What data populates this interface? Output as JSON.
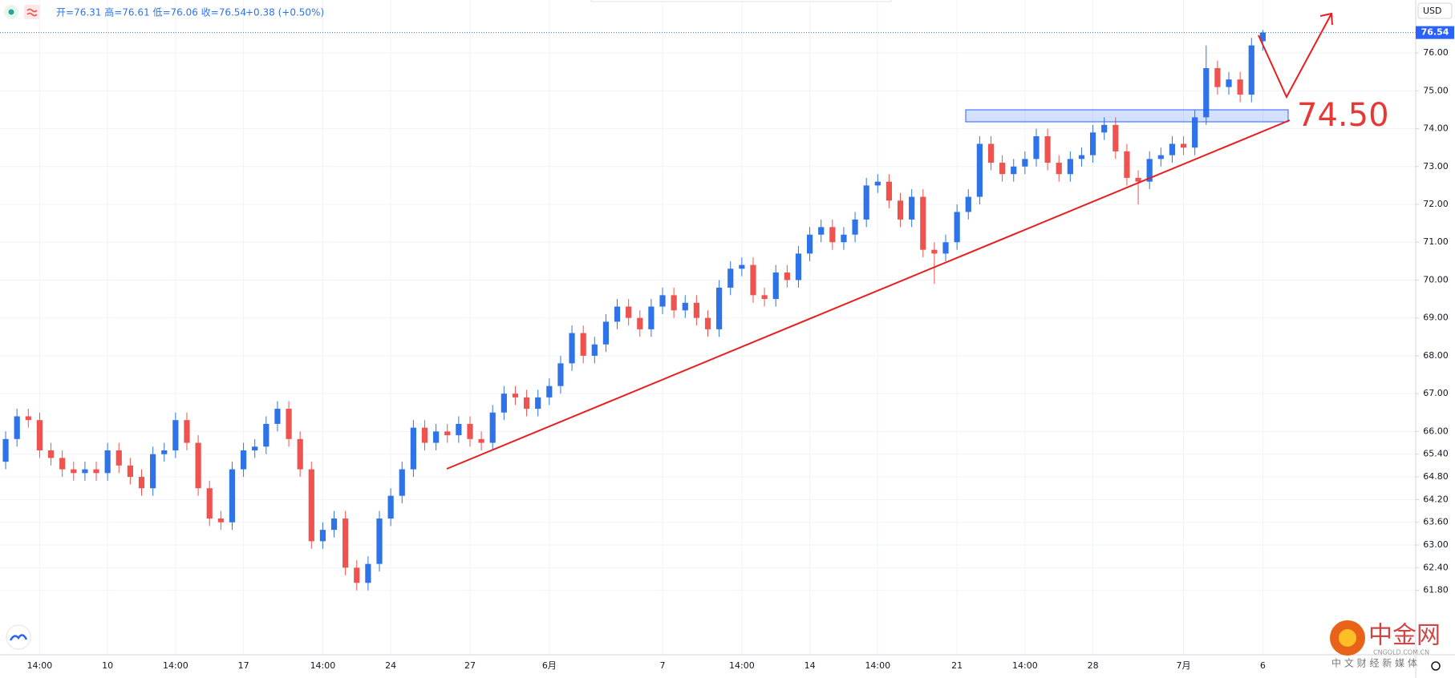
{
  "chart_data": {
    "type": "candlestick",
    "header": {
      "ohlc": "开=76.31 高=76.61 低=76.06 收=76.54",
      "change": "+0.38 (+0.50%)"
    },
    "currency": "USD",
    "annotation": "74.50",
    "watermark": {
      "brand": "中金网",
      "site": "CNGOLD.COM.CN",
      "slogan": "中 文 财 经 新 媒 体"
    },
    "up_color": "#2f73e8",
    "down_color": "#ef5350",
    "grid": true,
    "ylim": [
      60.1,
      77.4
    ],
    "yticks": [
      {
        "value": 61.8,
        "label": "61.80"
      },
      {
        "value": 62.4,
        "label": "62.40"
      },
      {
        "value": 63,
        "label": "63.00"
      },
      {
        "value": 63.6,
        "label": "63.60"
      },
      {
        "value": 64.2,
        "label": "64.20"
      },
      {
        "value": 64.8,
        "label": "64.80"
      },
      {
        "value": 65.4,
        "label": "65.40"
      },
      {
        "value": 66,
        "label": "66.00"
      },
      {
        "value": 67,
        "label": "67.00"
      },
      {
        "value": 68,
        "label": "68.00"
      },
      {
        "value": 69,
        "label": "69.00"
      },
      {
        "value": 70,
        "label": "70.00"
      },
      {
        "value": 71,
        "label": "71.00"
      },
      {
        "value": 72,
        "label": "72.00"
      },
      {
        "value": 73,
        "label": "73.00"
      },
      {
        "value": 74,
        "label": "74.00"
      },
      {
        "value": 75,
        "label": "75.00"
      },
      {
        "value": 76,
        "label": "76.00"
      }
    ],
    "categories": [
      null,
      null,
      null,
      "14:00",
      null,
      null,
      null,
      null,
      null,
      "10",
      null,
      null,
      null,
      null,
      null,
      "14:00",
      null,
      null,
      null,
      null,
      null,
      "17",
      null,
      null,
      null,
      null,
      null,
      null,
      "14:00",
      null,
      null,
      null,
      null,
      null,
      "24",
      null,
      null,
      null,
      null,
      null,
      null,
      "27",
      null,
      null,
      null,
      null,
      null,
      null,
      "6月",
      null,
      null,
      null,
      null,
      null,
      null,
      null,
      null,
      null,
      "7",
      null,
      null,
      null,
      null,
      null,
      null,
      "14:00",
      null,
      null,
      null,
      null,
      null,
      "14",
      null,
      null,
      null,
      null,
      null,
      "14:00",
      null,
      null,
      null,
      null,
      null,
      null,
      "21",
      null,
      null,
      null,
      null,
      null,
      "14:00",
      null,
      null,
      null,
      null,
      null,
      "28",
      null,
      null,
      null,
      null,
      null,
      null,
      null,
      "7月",
      null,
      null,
      null,
      null,
      null,
      null,
      "6"
    ],
    "candles": [
      [
        65.2,
        66.0,
        65.0,
        65.8
      ],
      [
        65.8,
        66.6,
        65.6,
        66.4
      ],
      [
        66.4,
        66.6,
        66.1,
        66.3
      ],
      [
        66.3,
        66.5,
        65.3,
        65.5
      ],
      [
        65.5,
        65.7,
        65.1,
        65.3
      ],
      [
        65.3,
        65.5,
        64.8,
        65.0
      ],
      [
        65.0,
        65.2,
        64.7,
        64.9
      ],
      [
        64.9,
        65.2,
        64.7,
        65.0
      ],
      [
        65.0,
        65.2,
        64.7,
        64.9
      ],
      [
        64.9,
        65.7,
        64.7,
        65.5
      ],
      [
        65.5,
        65.7,
        64.9,
        65.1
      ],
      [
        65.1,
        65.3,
        64.6,
        64.8
      ],
      [
        64.8,
        65.0,
        64.3,
        64.5
      ],
      [
        64.5,
        65.6,
        64.3,
        65.4
      ],
      [
        65.4,
        65.7,
        65.2,
        65.5
      ],
      [
        65.5,
        66.5,
        65.3,
        66.3
      ],
      [
        66.3,
        66.5,
        65.5,
        65.7
      ],
      [
        65.7,
        65.9,
        64.3,
        64.5
      ],
      [
        64.5,
        64.7,
        63.5,
        63.7
      ],
      [
        63.7,
        63.9,
        63.4,
        63.6
      ],
      [
        63.6,
        65.2,
        63.4,
        65.0
      ],
      [
        65.0,
        65.7,
        64.8,
        65.5
      ],
      [
        65.5,
        65.8,
        65.3,
        65.6
      ],
      [
        65.6,
        66.4,
        65.4,
        66.2
      ],
      [
        66.2,
        66.8,
        66.0,
        66.6
      ],
      [
        66.6,
        66.8,
        65.6,
        65.8
      ],
      [
        65.8,
        66.0,
        64.8,
        65.0
      ],
      [
        65.0,
        65.2,
        62.9,
        63.1
      ],
      [
        63.1,
        63.6,
        62.9,
        63.4
      ],
      [
        63.4,
        63.9,
        63.2,
        63.7
      ],
      [
        63.7,
        63.9,
        62.2,
        62.4
      ],
      [
        62.4,
        62.6,
        61.8,
        62.0
      ],
      [
        62.0,
        62.7,
        61.8,
        62.5
      ],
      [
        62.5,
        63.9,
        62.3,
        63.7
      ],
      [
        63.7,
        64.5,
        63.5,
        64.3
      ],
      [
        64.3,
        65.2,
        64.1,
        65.0
      ],
      [
        65.0,
        66.3,
        64.8,
        66.1
      ],
      [
        66.1,
        66.3,
        65.5,
        65.7
      ],
      [
        65.7,
        66.2,
        65.5,
        66.0
      ],
      [
        66.0,
        66.2,
        65.7,
        65.9
      ],
      [
        65.9,
        66.4,
        65.7,
        66.2
      ],
      [
        66.2,
        66.4,
        65.6,
        65.8
      ],
      [
        65.8,
        66.0,
        65.5,
        65.7
      ],
      [
        65.7,
        66.7,
        65.5,
        66.5
      ],
      [
        66.5,
        67.2,
        66.3,
        67.0
      ],
      [
        67.0,
        67.2,
        66.7,
        66.9
      ],
      [
        66.9,
        67.1,
        66.4,
        66.6
      ],
      [
        66.6,
        67.1,
        66.4,
        66.9
      ],
      [
        66.9,
        67.4,
        66.7,
        67.2
      ],
      [
        67.2,
        68.0,
        67.0,
        67.8
      ],
      [
        67.8,
        68.8,
        67.6,
        68.6
      ],
      [
        68.6,
        68.8,
        67.8,
        68.0
      ],
      [
        68.0,
        68.5,
        67.8,
        68.3
      ],
      [
        68.3,
        69.1,
        68.1,
        68.9
      ],
      [
        68.9,
        69.5,
        68.7,
        69.3
      ],
      [
        69.3,
        69.5,
        68.8,
        69.0
      ],
      [
        69.0,
        69.2,
        68.5,
        68.7
      ],
      [
        68.7,
        69.5,
        68.5,
        69.3
      ],
      [
        69.3,
        69.8,
        69.1,
        69.6
      ],
      [
        69.6,
        69.8,
        69.0,
        69.2
      ],
      [
        69.2,
        69.6,
        69.0,
        69.4
      ],
      [
        69.4,
        69.6,
        68.8,
        69.0
      ],
      [
        69.0,
        69.2,
        68.5,
        68.7
      ],
      [
        68.7,
        70.0,
        68.5,
        69.8
      ],
      [
        69.8,
        70.5,
        69.6,
        70.3
      ],
      [
        70.3,
        70.6,
        70.1,
        70.4
      ],
      [
        70.4,
        70.6,
        69.4,
        69.6
      ],
      [
        69.6,
        69.8,
        69.3,
        69.5
      ],
      [
        69.5,
        70.4,
        69.3,
        70.2
      ],
      [
        70.2,
        70.4,
        69.8,
        70.0
      ],
      [
        70.0,
        70.9,
        69.8,
        70.7
      ],
      [
        70.7,
        71.4,
        70.5,
        71.2
      ],
      [
        71.2,
        71.6,
        71.0,
        71.4
      ],
      [
        71.4,
        71.6,
        70.8,
        71.0
      ],
      [
        71.0,
        71.4,
        70.8,
        71.2
      ],
      [
        71.2,
        71.8,
        71.0,
        71.6
      ],
      [
        71.6,
        72.7,
        71.4,
        72.5
      ],
      [
        72.5,
        72.8,
        72.3,
        72.6
      ],
      [
        72.6,
        72.8,
        71.9,
        72.1
      ],
      [
        72.1,
        72.3,
        71.4,
        71.6
      ],
      [
        71.6,
        72.4,
        71.4,
        72.2
      ],
      [
        72.2,
        72.4,
        70.6,
        70.8
      ],
      [
        70.8,
        71.0,
        69.9,
        70.7
      ],
      [
        70.7,
        71.2,
        70.5,
        71.0
      ],
      [
        71.0,
        72.0,
        70.8,
        71.8
      ],
      [
        71.8,
        72.4,
        71.6,
        72.2
      ],
      [
        72.2,
        73.8,
        72.0,
        73.6
      ],
      [
        73.6,
        73.8,
        72.9,
        73.1
      ],
      [
        73.1,
        73.3,
        72.6,
        72.8
      ],
      [
        72.8,
        73.2,
        72.6,
        73.0
      ],
      [
        73.0,
        73.4,
        72.8,
        73.2
      ],
      [
        73.2,
        74.0,
        73.0,
        73.8
      ],
      [
        73.8,
        74.0,
        72.9,
        73.1
      ],
      [
        73.1,
        73.3,
        72.6,
        72.8
      ],
      [
        72.8,
        73.4,
        72.6,
        73.2
      ],
      [
        73.2,
        73.5,
        73.0,
        73.3
      ],
      [
        73.3,
        74.1,
        73.1,
        73.9
      ],
      [
        73.9,
        74.3,
        73.7,
        74.1
      ],
      [
        74.1,
        74.3,
        73.2,
        73.4
      ],
      [
        73.4,
        73.6,
        72.5,
        72.7
      ],
      [
        72.7,
        72.9,
        72.0,
        72.6
      ],
      [
        72.6,
        73.4,
        72.4,
        73.2
      ],
      [
        73.2,
        73.5,
        73.0,
        73.3
      ],
      [
        73.3,
        73.8,
        73.1,
        73.6
      ],
      [
        73.6,
        73.8,
        73.3,
        73.5
      ],
      [
        73.5,
        74.5,
        73.3,
        74.3
      ],
      [
        74.3,
        76.2,
        74.1,
        75.6
      ],
      [
        75.6,
        75.8,
        74.9,
        75.1
      ],
      [
        75.1,
        75.5,
        74.9,
        75.3
      ],
      [
        75.3,
        75.5,
        74.7,
        74.9
      ],
      [
        74.9,
        76.4,
        74.7,
        76.2
      ],
      [
        76.31,
        76.61,
        76.06,
        76.54
      ]
    ]
  }
}
